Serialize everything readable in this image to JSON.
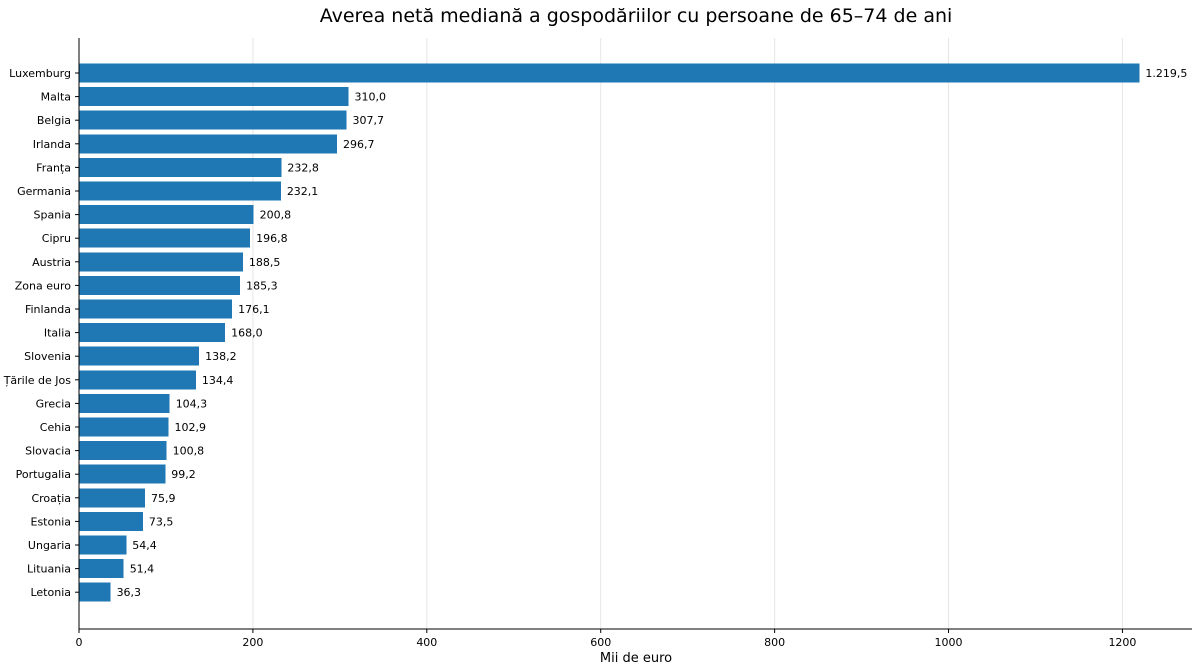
{
  "chart_data": {
    "type": "bar",
    "orientation": "horizontal",
    "title": "Averea netă mediană a gospodăriilor cu persoane de 65–74 de ani",
    "xlabel": "Mii de euro",
    "ylabel": "",
    "xlim": [
      0,
      1280
    ],
    "xticks": [
      0,
      200,
      400,
      600,
      800,
      1000,
      1200
    ],
    "grid": "vertical",
    "bar_color": "#1f77b4",
    "categories": [
      "Luxemburg",
      "Malta",
      "Belgia",
      "Irlanda",
      "Franța",
      "Germania",
      "Spania",
      "Cipru",
      "Austria",
      "Zona euro",
      "Finlanda",
      "Italia",
      "Slovenia",
      "Țările de Jos",
      "Grecia",
      "Cehia",
      "Slovacia",
      "Portugalia",
      "Croația",
      "Estonia",
      "Ungaria",
      "Lituania",
      "Letonia"
    ],
    "values": [
      1219.5,
      310.0,
      307.7,
      296.7,
      232.8,
      232.1,
      200.8,
      196.8,
      188.5,
      185.3,
      176.1,
      168.0,
      138.2,
      134.4,
      104.3,
      102.9,
      100.8,
      99.2,
      75.9,
      73.5,
      54.4,
      51.4,
      36.3
    ],
    "value_labels": [
      "1.219,5",
      "310,0",
      "307,7",
      "296,7",
      "232,8",
      "232,1",
      "200,8",
      "196,8",
      "188,5",
      "185,3",
      "176,1",
      "168,0",
      "138,2",
      "134,4",
      "104,3",
      "102,9",
      "100,8",
      "99,2",
      "75,9",
      "73,5",
      "54,4",
      "51,4",
      "36,3"
    ]
  }
}
